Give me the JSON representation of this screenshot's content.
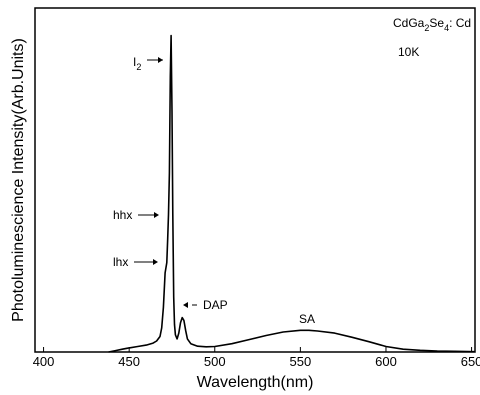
{
  "chart_data": {
    "type": "line",
    "title": "",
    "xlabel": "Wavelength(nm)",
    "ylabel": "Photoluminescience  Intensity(Arb.Units)",
    "xlim": [
      395,
      652
    ],
    "ylim": [
      0,
      1
    ],
    "x_ticks": [
      400,
      450,
      500,
      550,
      600,
      650
    ],
    "x_tick_labels": [
      "400",
      "450",
      "500",
      "550",
      "600",
      "650"
    ],
    "grid": false,
    "legend": "none",
    "sample_label_main": "CdGa",
    "sample_label_sub1": "2",
    "sample_label_mid": "Se",
    "sample_label_sub2": "4",
    "sample_label_end": ": Cd",
    "temperature_label": "10K",
    "annotations": [
      {
        "label_main": "I",
        "label_sub": "2",
        "x": 474.5,
        "y": 0.92
      },
      {
        "label_main": "hhx",
        "label_sub": "",
        "x": 472.8,
        "y": 0.4
      },
      {
        "label_main": "lhx",
        "label_sub": "",
        "x": 472.4,
        "y": 0.26
      },
      {
        "label_main": "DAP",
        "label_sub": "",
        "x": 481.0,
        "y": 0.1
      },
      {
        "label_main": "SA",
        "label_sub": "",
        "x": 553.0,
        "y": 0.065
      }
    ],
    "series": [
      {
        "values": [
          [
            438,
            0.0
          ],
          [
            442,
            0.004
          ],
          [
            446,
            0.008
          ],
          [
            450,
            0.012
          ],
          [
            455,
            0.016
          ],
          [
            460,
            0.02
          ],
          [
            464,
            0.026
          ],
          [
            466,
            0.032
          ],
          [
            468,
            0.045
          ],
          [
            469,
            0.07
          ],
          [
            470,
            0.13
          ],
          [
            471,
            0.23
          ],
          [
            472,
            0.26
          ],
          [
            472.5,
            0.33
          ],
          [
            473,
            0.4
          ],
          [
            473.5,
            0.52
          ],
          [
            474,
            0.8
          ],
          [
            474.5,
            0.92
          ],
          [
            475,
            0.7
          ],
          [
            475.5,
            0.4
          ],
          [
            476,
            0.16
          ],
          [
            476.5,
            0.08
          ],
          [
            477,
            0.05
          ],
          [
            478,
            0.038
          ],
          [
            479,
            0.055
          ],
          [
            480,
            0.085
          ],
          [
            481,
            0.1
          ],
          [
            482,
            0.092
          ],
          [
            483,
            0.062
          ],
          [
            484,
            0.038
          ],
          [
            486,
            0.024
          ],
          [
            490,
            0.017
          ],
          [
            495,
            0.015
          ],
          [
            500,
            0.016
          ],
          [
            510,
            0.024
          ],
          [
            520,
            0.036
          ],
          [
            530,
            0.048
          ],
          [
            540,
            0.058
          ],
          [
            550,
            0.063
          ],
          [
            555,
            0.063
          ],
          [
            560,
            0.061
          ],
          [
            570,
            0.055
          ],
          [
            580,
            0.043
          ],
          [
            590,
            0.03
          ],
          [
            600,
            0.016
          ],
          [
            610,
            0.008
          ],
          [
            620,
            0.005
          ],
          [
            630,
            0.003
          ],
          [
            640,
            0.002
          ],
          [
            652,
            0.001
          ]
        ]
      }
    ]
  }
}
